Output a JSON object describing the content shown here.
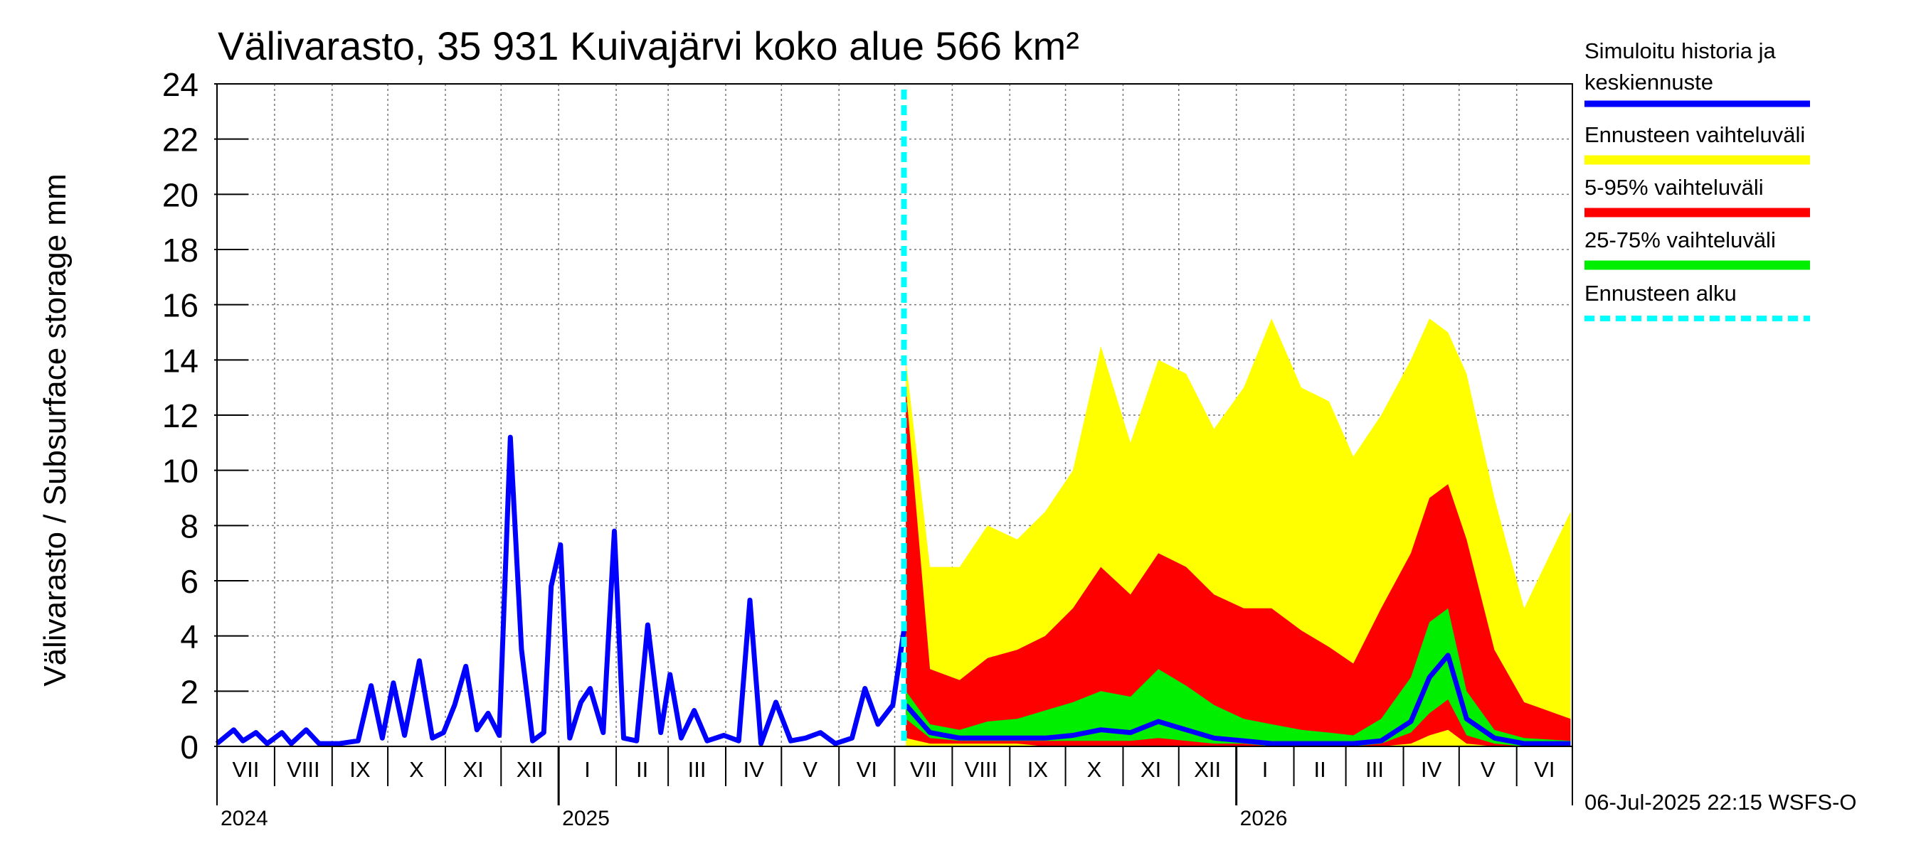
{
  "chart_data": {
    "type": "area",
    "title": "Välivarasto, 35 931 Kuivajärvi koko alue 566 km²",
    "ylabel": "Välivarasto / Subsurface storage  mm",
    "xlabel": "",
    "ylim": [
      0,
      24
    ],
    "yticks": [
      "0",
      "2",
      "4",
      "6",
      "8",
      "10",
      "12",
      "14",
      "16",
      "18",
      "20",
      "22",
      "24"
    ],
    "xlim": [
      "2024-07-01",
      "2026-07-01"
    ],
    "month_labels": [
      "VII",
      "VIII",
      "IX",
      "X",
      "XI",
      "XII",
      "I",
      "II",
      "III",
      "IV",
      "V",
      "VI",
      "VII",
      "VIII",
      "IX",
      "X",
      "XI",
      "XII",
      "I",
      "II",
      "III",
      "IV",
      "V",
      "VI"
    ],
    "year_labels": [
      "2024",
      "2025",
      "2026"
    ],
    "grid": true,
    "legend_position": "right",
    "forecast_start": "2025-07-06",
    "footer": "06-Jul-2025 22:15 WSFS-O",
    "colors": {
      "history": "#0000ff",
      "range_full": "#ffff00",
      "range_5_95": "#ff0000",
      "range_25_75": "#00ee00",
      "forecast_start": "#00ffff"
    },
    "legend": [
      {
        "label": "Simuloitu historia ja",
        "label2": "keskiennuste",
        "color": "#0000ff",
        "style": "solid"
      },
      {
        "label": "Ennusteen vaihteluväli",
        "color": "#ffff00",
        "style": "solid"
      },
      {
        "label": "5-95% vaihteluväli",
        "color": "#ff0000",
        "style": "solid"
      },
      {
        "label": "25-75% vaihteluväli",
        "color": "#00ee00",
        "style": "solid"
      },
      {
        "label": "Ennusteen alku",
        "color": "#00ffff",
        "style": "dashed"
      }
    ],
    "history": {
      "x": [
        "2024-07-01",
        "2024-07-10",
        "2024-07-15",
        "2024-07-22",
        "2024-07-28",
        "2024-08-05",
        "2024-08-10",
        "2024-08-18",
        "2024-08-25",
        "2024-09-05",
        "2024-09-15",
        "2024-09-22",
        "2024-09-28",
        "2024-10-04",
        "2024-10-10",
        "2024-10-18",
        "2024-10-25",
        "2024-10-31",
        "2024-11-06",
        "2024-11-12",
        "2024-11-18",
        "2024-11-24",
        "2024-11-30",
        "2024-12-06",
        "2024-12-12",
        "2024-12-18",
        "2024-12-24",
        "2024-12-28",
        "2025-01-02",
        "2025-01-07",
        "2025-01-13",
        "2025-01-18",
        "2025-01-25",
        "2025-01-31",
        "2025-02-05",
        "2025-02-12",
        "2025-02-18",
        "2025-02-25",
        "2025-03-02",
        "2025-03-08",
        "2025-03-15",
        "2025-03-22",
        "2025-03-31",
        "2025-04-08",
        "2025-04-14",
        "2025-04-20",
        "2025-04-28",
        "2025-05-06",
        "2025-05-14",
        "2025-05-22",
        "2025-05-30",
        "2025-06-08",
        "2025-06-15",
        "2025-06-22",
        "2025-06-30",
        "2025-07-06"
      ],
      "y": [
        0.1,
        0.6,
        0.2,
        0.5,
        0.1,
        0.5,
        0.1,
        0.6,
        0.1,
        0.1,
        0.2,
        2.2,
        0.3,
        2.3,
        0.4,
        3.1,
        0.3,
        0.5,
        1.5,
        2.9,
        0.6,
        1.2,
        0.4,
        11.2,
        3.5,
        0.2,
        0.5,
        5.8,
        7.3,
        0.3,
        1.6,
        2.1,
        0.5,
        7.8,
        0.3,
        0.2,
        4.4,
        0.5,
        2.6,
        0.3,
        1.3,
        0.2,
        0.4,
        0.2,
        5.3,
        0.1,
        1.6,
        0.2,
        0.3,
        0.5,
        0.1,
        0.3,
        2.1,
        0.8,
        1.5,
        4.2
      ]
    },
    "forecast": {
      "x": [
        "2025-07-07",
        "2025-07-20",
        "2025-08-05",
        "2025-08-20",
        "2025-09-05",
        "2025-09-20",
        "2025-10-05",
        "2025-10-20",
        "2025-11-05",
        "2025-11-20",
        "2025-12-05",
        "2025-12-20",
        "2026-01-05",
        "2026-01-20",
        "2026-02-05",
        "2026-02-20",
        "2026-03-05",
        "2026-03-20",
        "2026-04-05",
        "2026-04-15",
        "2026-04-25",
        "2026-05-05",
        "2026-05-20",
        "2026-06-05",
        "2026-06-30"
      ],
      "max": [
        14.0,
        6.5,
        6.5,
        8.0,
        7.5,
        8.5,
        10.0,
        14.5,
        11.0,
        14.0,
        13.5,
        11.5,
        13.0,
        15.5,
        13.0,
        12.5,
        10.5,
        12.0,
        14.0,
        15.5,
        15.0,
        13.5,
        9.0,
        5.0,
        8.5
      ],
      "p95": [
        13.0,
        2.8,
        2.4,
        3.2,
        3.5,
        4.0,
        5.0,
        6.5,
        5.5,
        7.0,
        6.5,
        5.5,
        5.0,
        5.0,
        4.2,
        3.6,
        3.0,
        5.0,
        7.0,
        9.0,
        9.5,
        7.5,
        3.5,
        1.6,
        1.0
      ],
      "p75": [
        2.0,
        0.8,
        0.6,
        0.9,
        1.0,
        1.3,
        1.6,
        2.0,
        1.8,
        2.8,
        2.2,
        1.5,
        1.0,
        0.8,
        0.6,
        0.5,
        0.4,
        1.0,
        2.5,
        4.5,
        5.0,
        2.0,
        0.6,
        0.3,
        0.2
      ],
      "median": [
        1.5,
        0.5,
        0.3,
        0.3,
        0.3,
        0.3,
        0.4,
        0.6,
        0.5,
        0.9,
        0.6,
        0.3,
        0.2,
        0.1,
        0.1,
        0.1,
        0.1,
        0.2,
        0.9,
        2.5,
        3.3,
        1.0,
        0.3,
        0.1,
        0.1
      ],
      "p25": [
        1.0,
        0.3,
        0.2,
        0.2,
        0.2,
        0.2,
        0.2,
        0.2,
        0.2,
        0.3,
        0.2,
        0.1,
        0.1,
        0.0,
        0.0,
        0.0,
        0.0,
        0.1,
        0.5,
        1.2,
        1.7,
        0.4,
        0.1,
        0.0,
        0.0
      ],
      "p5": [
        0.3,
        0.1,
        0.1,
        0.1,
        0.1,
        0.0,
        0.0,
        0.0,
        0.0,
        0.0,
        0.0,
        0.0,
        0.0,
        0.0,
        0.0,
        0.0,
        0.0,
        0.0,
        0.1,
        0.4,
        0.6,
        0.1,
        0.0,
        0.0,
        0.0
      ]
    }
  }
}
